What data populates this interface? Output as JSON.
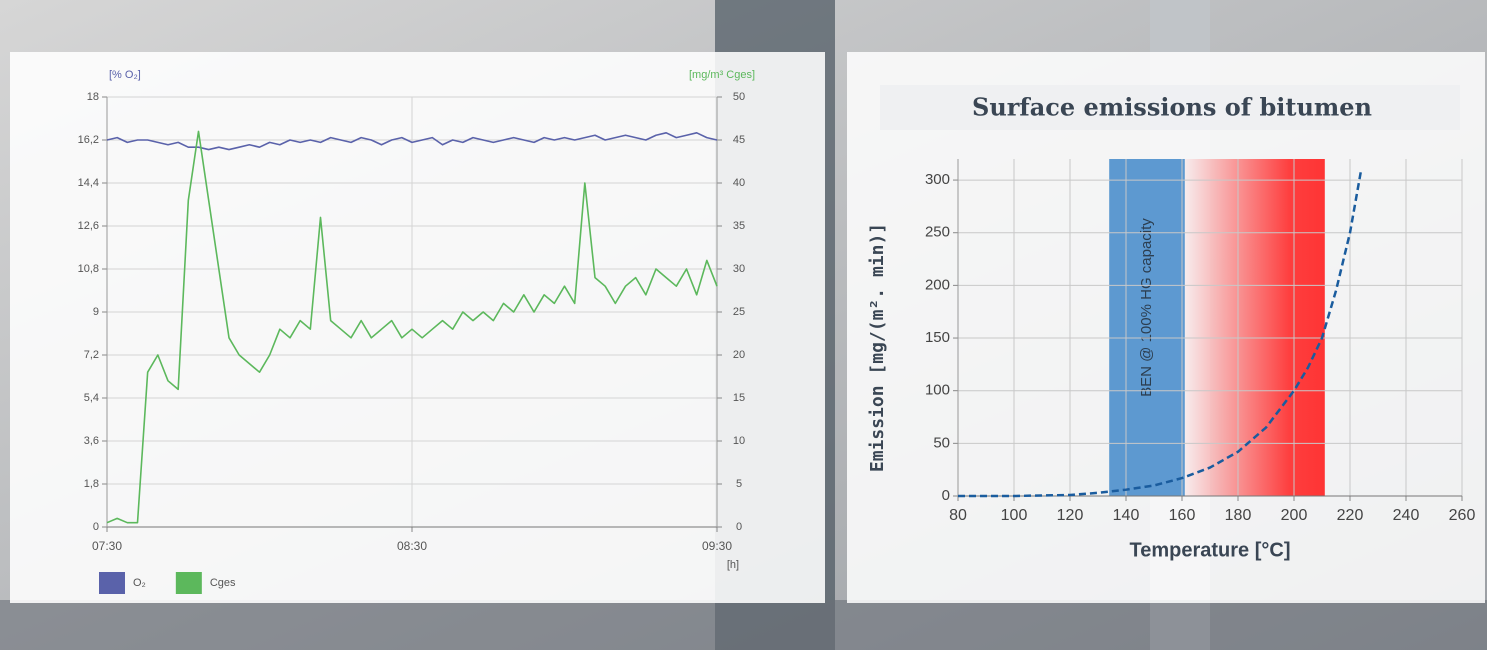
{
  "chart_data": [
    {
      "type": "line",
      "ylabel": "[% O₂]",
      "y2label": "[mg/m³ Cges]",
      "xlabel": "[h]",
      "x": [
        "07:30",
        "07:32",
        "07:34",
        "07:36",
        "07:38",
        "07:40",
        "07:42",
        "07:44",
        "07:46",
        "07:48",
        "07:50",
        "07:52",
        "07:54",
        "07:56",
        "07:58",
        "08:00",
        "08:02",
        "08:04",
        "08:06",
        "08:08",
        "08:10",
        "08:12",
        "08:14",
        "08:16",
        "08:18",
        "08:20",
        "08:22",
        "08:24",
        "08:26",
        "08:28",
        "08:30",
        "08:32",
        "08:34",
        "08:36",
        "08:38",
        "08:40",
        "08:42",
        "08:44",
        "08:46",
        "08:48",
        "08:50",
        "08:52",
        "08:54",
        "08:56",
        "08:58",
        "09:00",
        "09:02",
        "09:04",
        "09:06",
        "09:08",
        "09:10",
        "09:12",
        "09:14",
        "09:16",
        "09:18",
        "09:20",
        "09:22",
        "09:24",
        "09:26",
        "09:28",
        "09:30"
      ],
      "xlim": [
        "07:30",
        "09:30"
      ],
      "xticks": [
        "07:30",
        "08:30",
        "09:30"
      ],
      "ylim": [
        0,
        18
      ],
      "yticks": [
        0,
        {
          "value": 1.8,
          "label": "1,8"
        },
        {
          "value": 3.6,
          "label": "3,6"
        },
        {
          "value": 5.4,
          "label": "5,4"
        },
        {
          "value": 7.2,
          "label": "7,2"
        },
        9,
        {
          "value": 10.8,
          "label": "10,8"
        },
        {
          "value": 12.6,
          "label": "12,6"
        },
        {
          "value": 14.4,
          "label": "14,4"
        },
        {
          "value": 16.2,
          "label": "16,2"
        },
        18
      ],
      "y2lim": [
        0,
        50
      ],
      "y2ticks": [
        0,
        5,
        10,
        15,
        20,
        25,
        30,
        35,
        40,
        45,
        50
      ],
      "grid": true,
      "legend": "bottom-left",
      "series": [
        {
          "name": "O₂",
          "color": "#5a62aa",
          "axis": "y",
          "values": [
            16.2,
            16.3,
            16.1,
            16.2,
            16.2,
            16.1,
            16.0,
            16.1,
            15.9,
            15.9,
            15.8,
            15.9,
            15.8,
            15.9,
            16.0,
            15.9,
            16.1,
            16.0,
            16.2,
            16.1,
            16.2,
            16.1,
            16.3,
            16.2,
            16.1,
            16.3,
            16.2,
            16.0,
            16.2,
            16.3,
            16.1,
            16.2,
            16.3,
            16.0,
            16.2,
            16.1,
            16.3,
            16.2,
            16.1,
            16.2,
            16.3,
            16.2,
            16.1,
            16.3,
            16.2,
            16.3,
            16.2,
            16.3,
            16.4,
            16.2,
            16.3,
            16.4,
            16.3,
            16.2,
            16.4,
            16.5,
            16.3,
            16.4,
            16.5,
            16.3,
            16.2
          ]
        },
        {
          "name": "Cges",
          "color": "#5cb85c",
          "axis": "y2",
          "values": [
            0.5,
            1,
            0.5,
            0.5,
            18,
            20,
            17,
            16,
            38,
            46,
            38,
            30,
            22,
            20,
            19,
            18,
            20,
            23,
            22,
            24,
            23,
            36,
            24,
            23,
            22,
            24,
            22,
            23,
            24,
            22,
            23,
            22,
            23,
            24,
            23,
            25,
            24,
            25,
            24,
            26,
            25,
            27,
            25,
            27,
            26,
            28,
            26,
            40,
            29,
            28,
            26,
            28,
            29,
            27,
            30,
            29,
            28,
            30,
            27,
            31,
            28
          ]
        }
      ]
    },
    {
      "type": "line",
      "title": "Surface emissions of bitumen",
      "xlabel": "Temperature [°C]",
      "ylabel": "Emission [mg/(m². min)]",
      "x": [
        80,
        100,
        120,
        130,
        140,
        150,
        160,
        170,
        180,
        190,
        200,
        205,
        210,
        215,
        220,
        224
      ],
      "xlim": [
        80,
        260
      ],
      "xticks": [
        80,
        100,
        120,
        140,
        160,
        180,
        200,
        220,
        240,
        260
      ],
      "ylim": [
        0,
        320
      ],
      "yticks": [
        0,
        50,
        100,
        150,
        200,
        250,
        300
      ],
      "grid": true,
      "bands": [
        {
          "range": [
            134,
            161
          ],
          "color": "#4d8fcc",
          "label": "BEN @ 100% HG capacity"
        },
        {
          "range": [
            161,
            211
          ],
          "color": "#ff2a2a"
        }
      ],
      "series": [
        {
          "color": "#1a5c9e",
          "line_style": "dashed",
          "axis": "y",
          "values": [
            0,
            0,
            1,
            3,
            6,
            10,
            17,
            27,
            42,
            65,
            100,
            122,
            150,
            195,
            250,
            310
          ]
        }
      ]
    }
  ]
}
